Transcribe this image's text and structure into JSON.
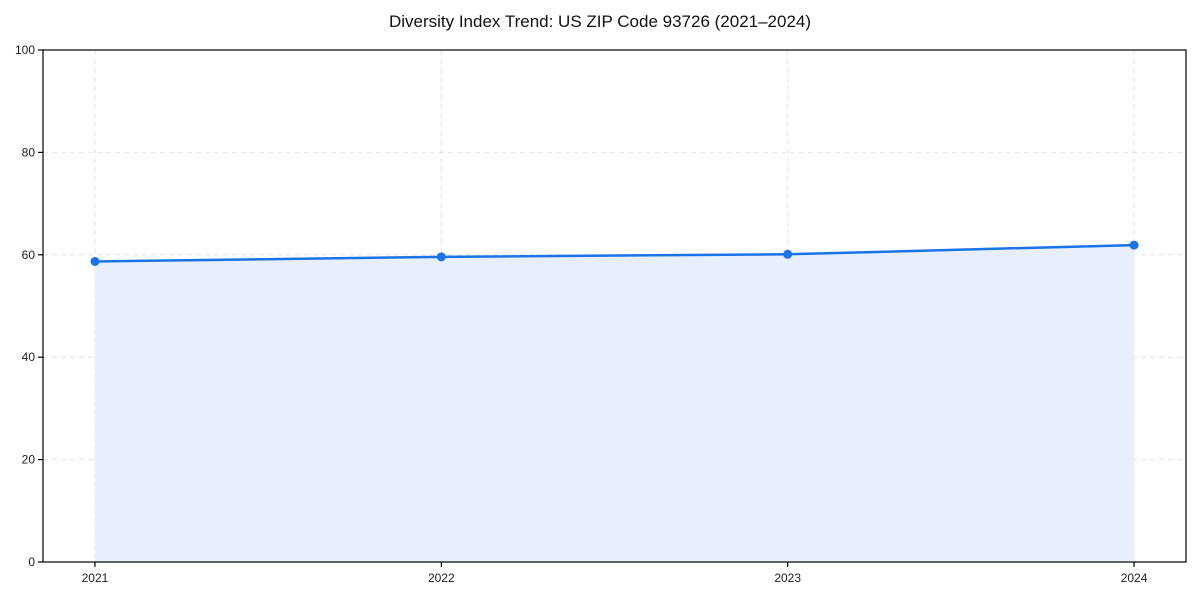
{
  "chart_data": {
    "type": "line",
    "title": "Diversity Index Trend: US ZIP Code 93726 (2021–2024)",
    "categories": [
      "2021",
      "2022",
      "2023",
      "2024"
    ],
    "values": [
      58.7,
      59.6,
      60.1,
      61.9
    ],
    "xlabel": "",
    "ylabel": "",
    "ylim": [
      0,
      100
    ],
    "yticks": [
      0,
      20,
      40,
      60,
      80,
      100
    ],
    "grid": true,
    "grid_style": "dashed",
    "legend": false,
    "area_fill": true,
    "marker": "circle",
    "colors": {
      "line": "#1a73e8",
      "marker": "#1a73e8",
      "fill": "#e7effc",
      "grid": "#e4e4e4",
      "axis": "#000000",
      "tick_text": "#1d1d1d",
      "title_text": "#111111",
      "background": "#ffffff"
    }
  }
}
